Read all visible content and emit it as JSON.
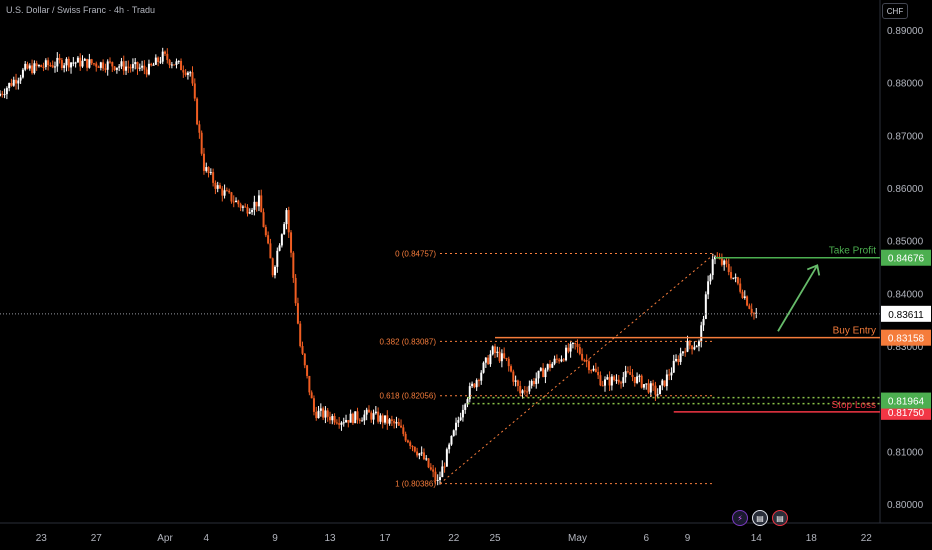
{
  "header": {
    "title": "U.S. Dollar / Swiss Franc · 4h · Tradu",
    "currency_button": "CHF"
  },
  "colors": {
    "bull": "#ffffff",
    "bear": "#f05d22",
    "fib": "#f57c3b",
    "tp": "#4caf50",
    "entry": "#f57c3b",
    "stop": "#f23645",
    "price": "#ffffff",
    "arrow": "#66bb6a"
  },
  "icons": [
    "lightning-icon",
    "flag-us-icon",
    "flag-us-icon"
  ],
  "chart_data": {
    "type": "candlestick",
    "title": "U.S. Dollar / Swiss Franc · 4h · Tradu",
    "y_range": [
      0.7985,
      0.8918
    ],
    "x_range": [
      "2024-03-20",
      "2024-05-23"
    ],
    "y_ticks": [
      "0.89000",
      "0.88000",
      "0.87000",
      "0.86000",
      "0.85000",
      "0.84000",
      "0.83000",
      "0.82000",
      "0.81000",
      "0.80000"
    ],
    "x_ticks": [
      {
        "date": "2024-03-23",
        "label": "23"
      },
      {
        "date": "2024-03-27",
        "label": "27"
      },
      {
        "date": "2024-04-01",
        "label": "Apr"
      },
      {
        "date": "2024-04-04",
        "label": "4"
      },
      {
        "date": "2024-04-09",
        "label": "9"
      },
      {
        "date": "2024-04-13",
        "label": "13"
      },
      {
        "date": "2024-04-17",
        "label": "17"
      },
      {
        "date": "2024-04-22",
        "label": "22"
      },
      {
        "date": "2024-04-25",
        "label": "25"
      },
      {
        "date": "2024-05-01",
        "label": "May"
      },
      {
        "date": "2024-05-06",
        "label": "6"
      },
      {
        "date": "2024-05-09",
        "label": "9"
      },
      {
        "date": "2024-05-14",
        "label": "14"
      },
      {
        "date": "2024-05-18",
        "label": "18"
      },
      {
        "date": "2024-05-22",
        "label": "22"
      }
    ],
    "price_path": [
      [
        "2024-03-20",
        0.8775
      ],
      [
        "2024-03-22",
        0.8825
      ],
      [
        "2024-03-25",
        0.884
      ],
      [
        "2024-03-28",
        0.8835
      ],
      [
        "2024-03-31",
        0.8825
      ],
      [
        "2024-04-01",
        0.885
      ],
      [
        "2024-04-03",
        0.882
      ],
      [
        "2024-04-04",
        0.864
      ],
      [
        "2024-04-05",
        0.86
      ],
      [
        "2024-04-07",
        0.856
      ],
      [
        "2024-04-08",
        0.8575
      ],
      [
        "2024-04-09",
        0.844
      ],
      [
        "2024-04-10",
        0.856
      ],
      [
        "2024-04-11",
        0.83
      ],
      [
        "2024-04-12",
        0.8175
      ],
      [
        "2024-04-14",
        0.816
      ],
      [
        "2024-04-16",
        0.817
      ],
      [
        "2024-04-18",
        0.815
      ],
      [
        "2024-04-20",
        0.8085
      ],
      [
        "2024-04-21",
        0.804
      ],
      [
        "2024-04-23",
        0.82
      ],
      [
        "2024-04-25",
        0.829
      ],
      [
        "2024-04-26",
        0.827
      ],
      [
        "2024-04-27",
        0.821
      ],
      [
        "2024-04-29",
        0.826
      ],
      [
        "2024-05-01",
        0.83
      ],
      [
        "2024-05-03",
        0.823
      ],
      [
        "2024-05-05",
        0.8245
      ],
      [
        "2024-05-07",
        0.821
      ],
      [
        "2024-05-09",
        0.83
      ],
      [
        "2024-05-10",
        0.8305
      ],
      [
        "2024-05-11",
        0.847
      ],
      [
        "2024-05-12",
        0.845
      ],
      [
        "2024-05-13",
        0.841
      ],
      [
        "2024-05-14",
        0.8361
      ]
    ],
    "fib_levels": [
      {
        "label": "0 (0.84757)",
        "value": 0.84757
      },
      {
        "label": "0.382 (0.83087)",
        "value": 0.83087
      },
      {
        "label": "0.618 (0.82056)",
        "value": 0.82056
      },
      {
        "label": "1 (0.80386)",
        "value": 0.80386
      }
    ],
    "levels": [
      {
        "name": "Take Profit",
        "value": 0.84676,
        "badge": "0.84676"
      },
      {
        "name": "Buy Entry",
        "value": 0.83158,
        "badge": "0.83158"
      },
      {
        "name": "Stop Loss",
        "value": 0.8175,
        "badge": "0.81750"
      }
    ],
    "support_zone": {
      "value": 0.81964,
      "badge": "0.81964"
    },
    "last_price": {
      "value": 0.83611,
      "badge": "0.83611"
    }
  }
}
